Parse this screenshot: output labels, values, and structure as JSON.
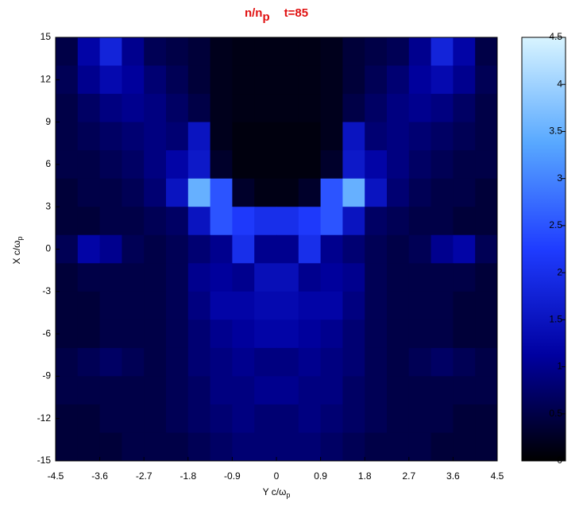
{
  "chart_data": {
    "type": "heatmap",
    "title": {
      "main": "n/n",
      "subscript": "p",
      "time": "t=85"
    },
    "xlabel": {
      "text": "Y c/ω",
      "subscript": "p"
    },
    "ylabel": {
      "text": "X c/ω",
      "subscript": "p"
    },
    "xlim": [
      -4.5,
      4.5
    ],
    "ylim": [
      -15,
      15
    ],
    "xticks": [
      -4.5,
      -3.6,
      -2.7,
      -1.8,
      -0.9,
      0,
      0.9,
      1.8,
      2.7,
      3.6,
      4.5
    ],
    "yticks": [
      -15,
      -12,
      -9,
      -6,
      -3,
      0,
      3,
      6,
      9,
      12,
      15
    ],
    "clim": [
      0,
      4.5
    ],
    "cticks": [
      0,
      0.5,
      1,
      1.5,
      2,
      2.5,
      3,
      3.5,
      4,
      4.5
    ],
    "colormap": [
      "#000000",
      "#0000a0",
      "#1f3cff",
      "#58a8ff",
      "#d8f4ff"
    ],
    "x": [
      -4.275,
      -3.825,
      -3.375,
      -2.925,
      -2.475,
      -2.025,
      -1.575,
      -1.125,
      -0.675,
      -0.225,
      0.225,
      0.675,
      1.125,
      1.575,
      2.025,
      2.475,
      2.925,
      3.375,
      3.825,
      4.275
    ],
    "y": [
      14,
      12,
      10,
      8,
      6,
      4,
      2,
      0,
      -2,
      -4,
      -6,
      -8,
      -10,
      -12,
      -14
    ],
    "z": [
      [
        0.5,
        1.2,
        1.8,
        1.0,
        0.6,
        0.5,
        0.4,
        0.2,
        0.15,
        0.15,
        0.15,
        0.15,
        0.2,
        0.4,
        0.5,
        0.6,
        1.0,
        1.8,
        1.2,
        0.5
      ],
      [
        0.6,
        1.0,
        1.3,
        1.1,
        0.8,
        0.6,
        0.4,
        0.2,
        0.15,
        0.15,
        0.15,
        0.15,
        0.2,
        0.4,
        0.6,
        0.8,
        1.1,
        1.3,
        1.0,
        0.6
      ],
      [
        0.5,
        0.7,
        0.9,
        1.0,
        0.9,
        0.7,
        0.5,
        0.2,
        0.15,
        0.15,
        0.15,
        0.15,
        0.2,
        0.5,
        0.7,
        0.9,
        1.0,
        0.9,
        0.7,
        0.5
      ],
      [
        0.5,
        0.6,
        0.7,
        0.8,
        0.9,
        0.8,
        1.5,
        0.2,
        0.1,
        0.1,
        0.1,
        0.1,
        0.2,
        1.5,
        0.8,
        0.9,
        0.8,
        0.7,
        0.6,
        0.5
      ],
      [
        0.5,
        0.5,
        0.6,
        0.7,
        0.9,
        1.2,
        1.6,
        0.3,
        0.1,
        0.1,
        0.1,
        0.1,
        0.3,
        1.6,
        1.2,
        0.9,
        0.7,
        0.6,
        0.5,
        0.5
      ],
      [
        0.4,
        0.5,
        0.5,
        0.6,
        0.8,
        1.5,
        3.5,
        2.5,
        0.3,
        0.15,
        0.15,
        0.3,
        2.5,
        3.5,
        1.5,
        0.8,
        0.6,
        0.5,
        0.5,
        0.4
      ],
      [
        0.4,
        0.4,
        0.5,
        0.5,
        0.6,
        0.7,
        1.5,
        2.5,
        2.2,
        2.0,
        2.0,
        2.2,
        2.5,
        1.5,
        0.7,
        0.6,
        0.5,
        0.5,
        0.4,
        0.4
      ],
      [
        0.6,
        1.2,
        1.0,
        0.6,
        0.5,
        0.6,
        0.8,
        1.0,
        2.0,
        1.0,
        1.0,
        2.0,
        1.0,
        0.8,
        0.6,
        0.5,
        0.6,
        1.0,
        1.2,
        0.6
      ],
      [
        0.4,
        0.5,
        0.5,
        0.5,
        0.5,
        0.6,
        1.0,
        1.1,
        1.0,
        1.4,
        1.4,
        1.0,
        1.1,
        1.0,
        0.6,
        0.5,
        0.5,
        0.5,
        0.5,
        0.4
      ],
      [
        0.4,
        0.4,
        0.5,
        0.5,
        0.5,
        0.6,
        0.9,
        1.2,
        1.2,
        1.3,
        1.3,
        1.2,
        1.2,
        0.9,
        0.6,
        0.5,
        0.5,
        0.5,
        0.4,
        0.4
      ],
      [
        0.4,
        0.4,
        0.5,
        0.5,
        0.5,
        0.6,
        0.8,
        1.0,
        1.1,
        1.2,
        1.2,
        1.1,
        1.0,
        0.8,
        0.6,
        0.5,
        0.5,
        0.5,
        0.4,
        0.4
      ],
      [
        0.5,
        0.6,
        0.7,
        0.6,
        0.5,
        0.6,
        0.8,
        0.9,
        1.0,
        0.9,
        0.9,
        1.0,
        0.9,
        0.8,
        0.6,
        0.5,
        0.6,
        0.7,
        0.6,
        0.5
      ],
      [
        0.5,
        0.5,
        0.5,
        0.5,
        0.5,
        0.6,
        0.7,
        0.9,
        0.9,
        1.0,
        1.0,
        0.9,
        0.9,
        0.7,
        0.6,
        0.5,
        0.5,
        0.5,
        0.5,
        0.5
      ],
      [
        0.4,
        0.4,
        0.5,
        0.5,
        0.5,
        0.6,
        0.7,
        0.8,
        0.9,
        0.8,
        0.8,
        0.9,
        0.8,
        0.7,
        0.6,
        0.5,
        0.5,
        0.5,
        0.4,
        0.4
      ],
      [
        0.4,
        0.4,
        0.4,
        0.5,
        0.5,
        0.5,
        0.6,
        0.7,
        0.8,
        0.8,
        0.8,
        0.8,
        0.7,
        0.6,
        0.5,
        0.5,
        0.5,
        0.4,
        0.4,
        0.4
      ]
    ]
  }
}
